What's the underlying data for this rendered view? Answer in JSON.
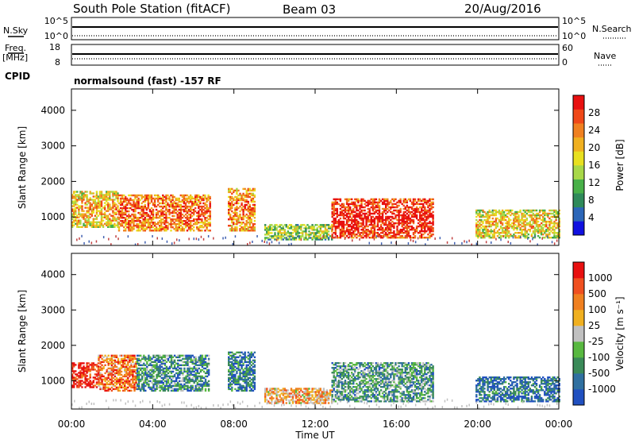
{
  "header": {
    "station": "South Pole Station (fitACF)",
    "beam": "Beam 03",
    "date": "20/Aug/2016"
  },
  "summary_panels": {
    "nsky_label": "N.Sky",
    "nsky_ticks": [
      "10^5",
      "10^0"
    ],
    "nsearch_label": "N.Search",
    "nsearch_ticks": [
      "10^5",
      "10^0"
    ],
    "freq_label": "Freq.",
    "freq_unit": "[MHz]",
    "freq_ticks": [
      "18",
      "8"
    ],
    "nave_label": "Nave",
    "nave_ticks": [
      "60",
      "0"
    ],
    "cpid_label": "CPID",
    "cpid_text": "normalsound (fast) -157 RF"
  },
  "chart_data": [
    {
      "type": "heatmap",
      "panel": "power",
      "ylabel": "Slant Range [km]",
      "xlabel": "",
      "yticks": [
        "1000",
        "2000",
        "3000",
        "4000"
      ],
      "ylim": [
        200,
        4600
      ],
      "xlim": [
        0,
        24
      ],
      "colorbar_label": "Power [dB]",
      "colorbar_ticks": [
        "28",
        "24",
        "20",
        "16",
        "12",
        "8",
        "4"
      ],
      "colorbar_colors": [
        "#1010e0",
        "#2c66b8",
        "#2f8a5a",
        "#48b048",
        "#a8d848",
        "#e8e020",
        "#f0b020",
        "#f08020",
        "#f04818",
        "#e81010"
      ],
      "echo_regions": [
        {
          "t0": 0.0,
          "t1": 2.3,
          "r0": 700,
          "r1": 1700,
          "level": 0.55
        },
        {
          "t0": 2.3,
          "t1": 6.8,
          "r0": 600,
          "r1": 1600,
          "level": 0.7
        },
        {
          "t0": 7.7,
          "t1": 9.0,
          "r0": 600,
          "r1": 1800,
          "level": 0.65
        },
        {
          "t0": 9.5,
          "t1": 12.8,
          "r0": 350,
          "r1": 800,
          "level": 0.35
        },
        {
          "t0": 12.8,
          "t1": 17.8,
          "r0": 400,
          "r1": 1500,
          "level": 0.85
        },
        {
          "t0": 19.9,
          "t1": 24.0,
          "r0": 400,
          "r1": 1200,
          "level": 0.5
        }
      ]
    },
    {
      "type": "heatmap",
      "panel": "velocity",
      "ylabel": "Slant Range [km]",
      "xlabel": "Time UT",
      "yticks": [
        "1000",
        "2000",
        "3000",
        "4000"
      ],
      "ylim": [
        200,
        4600
      ],
      "xlim": [
        0,
        24
      ],
      "xticks": [
        "00:00",
        "04:00",
        "08:00",
        "12:00",
        "16:00",
        "20:00",
        "00:00"
      ],
      "colorbar_label": "Velocity [m s⁻¹]",
      "colorbar_ticks": [
        "1000",
        "500",
        "100",
        "25",
        "-25",
        "-100",
        "-500",
        "-1000"
      ],
      "colorbar_colors": [
        "#2050c0",
        "#3070a0",
        "#3a8a58",
        "#58b840",
        "#c0c0c0",
        "#f0b020",
        "#f08020",
        "#f05020",
        "#e81010"
      ],
      "echo_regions": [
        {
          "t0": 0.0,
          "t1": 1.3,
          "r0": 800,
          "r1": 1500,
          "level": 0.95
        },
        {
          "t0": 1.3,
          "t1": 3.2,
          "r0": 700,
          "r1": 1700,
          "level": 0.75
        },
        {
          "t0": 3.2,
          "t1": 6.8,
          "r0": 700,
          "r1": 1700,
          "level": 0.25
        },
        {
          "t0": 7.7,
          "t1": 9.0,
          "r0": 700,
          "r1": 1800,
          "level": 0.2
        },
        {
          "t0": 9.5,
          "t1": 12.8,
          "r0": 350,
          "r1": 800,
          "level": 0.65
        },
        {
          "t0": 12.8,
          "t1": 17.8,
          "r0": 400,
          "r1": 1500,
          "level": 0.3
        },
        {
          "t0": 19.9,
          "t1": 24.0,
          "r0": 400,
          "r1": 1100,
          "level": 0.15
        }
      ]
    }
  ]
}
